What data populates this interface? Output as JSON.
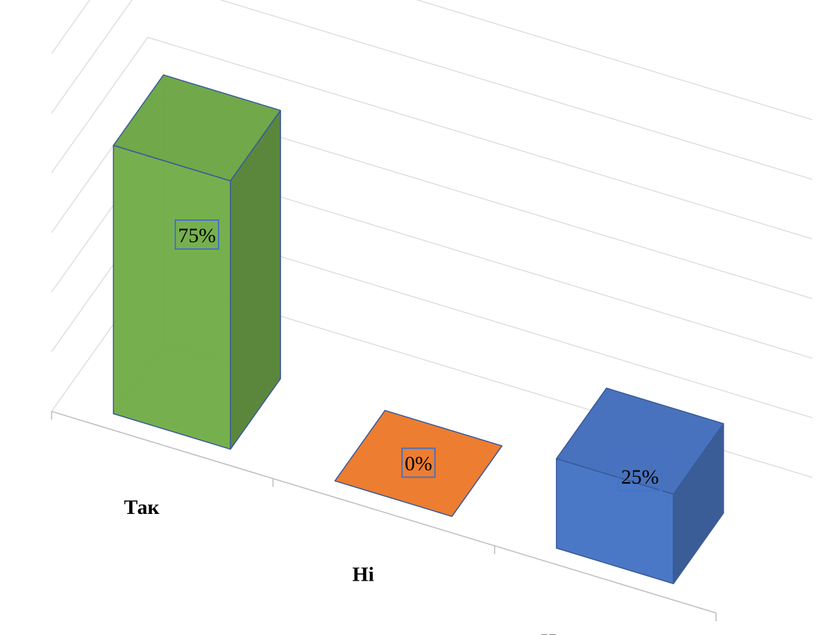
{
  "chart_data": {
    "type": "bar",
    "categories": [
      "Так",
      "Ні",
      "Частково"
    ],
    "values": [
      75,
      0,
      25
    ],
    "value_labels": [
      "75%",
      "0%",
      "25%"
    ],
    "colors": [
      "#70ad47",
      "#ed7d31",
      "#4472c4"
    ],
    "title": "",
    "xlabel": "",
    "ylabel": "",
    "ylim": [
      0,
      100
    ],
    "unit": "%",
    "grid": true,
    "legend": "none",
    "style": "3d-column"
  }
}
